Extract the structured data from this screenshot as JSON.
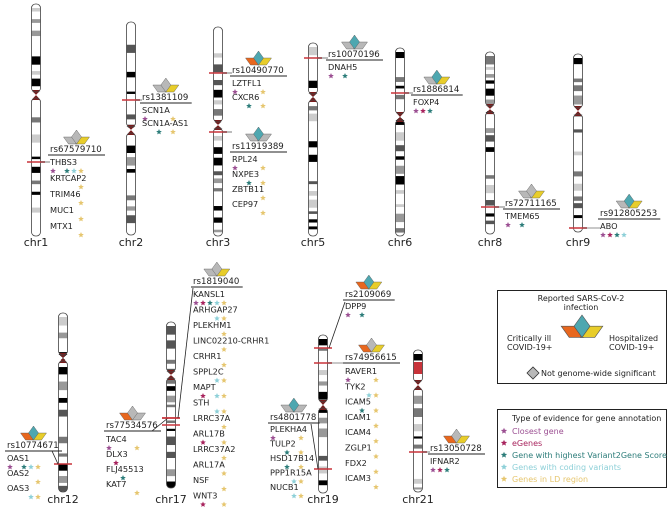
{
  "colors": {
    "critically_ill": "#e8671e",
    "reported_infection": "#4ea7b0",
    "hospitalized": "#e8cd2a",
    "not_significant": "#b8b8b8",
    "marker": "#c8333a",
    "evidence": {
      "C": "#9b4f92",
      "E": "#a8245e",
      "V": "#2d7d7a",
      "P": "#8ed0d8",
      "L": "#e6c66f"
    }
  },
  "chromosomes": [
    {
      "name": "chr1"
    },
    {
      "name": "chr2"
    },
    {
      "name": "chr3"
    },
    {
      "name": "chr5"
    },
    {
      "name": "chr6"
    },
    {
      "name": "chr8"
    },
    {
      "name": "chr9"
    },
    {
      "name": "chr12"
    },
    {
      "name": "chr17"
    },
    {
      "name": "chr19"
    },
    {
      "name": "chr21"
    }
  ],
  "loci": [
    {
      "chr": "chr1",
      "rsid": "rs67579710",
      "icon": [
        "grey",
        "grey",
        "yellow"
      ],
      "genes": [
        {
          "name": "THBS3",
          "ev": [
            "C",
            "V",
            "P",
            "L"
          ]
        },
        {
          "name": "KRTCAP2",
          "ev": [
            "L"
          ]
        },
        {
          "name": "TRIM46",
          "ev": [
            "L"
          ]
        },
        {
          "name": "MUC1",
          "ev": [
            "L"
          ]
        },
        {
          "name": "MTX1",
          "ev": [
            "L"
          ]
        }
      ]
    },
    {
      "chr": "chr2",
      "rsid": "rs1381109",
      "icon": [
        "grey",
        "grey",
        "yellow"
      ],
      "genes": [
        {
          "name": "SCN1A",
          "ev": [
            "C",
            "L"
          ]
        },
        {
          "name": "SCN1A-AS1",
          "ev": [
            "V",
            "L"
          ]
        }
      ]
    },
    {
      "chr": "chr3",
      "rsid": "rs10490770",
      "icon": [
        "orange",
        "teal",
        "yellow"
      ],
      "genes": [
        {
          "name": "LZTFL1",
          "ev": [
            "C",
            "L"
          ]
        },
        {
          "name": "CXCR6",
          "ev": [
            "V",
            "L"
          ]
        }
      ]
    },
    {
      "chr": "chr3",
      "rsid": "rs11919389",
      "icon": [
        "grey",
        "teal",
        "grey"
      ],
      "genes": [
        {
          "name": "RPL24",
          "ev": [
            "C",
            "L"
          ]
        },
        {
          "name": "NXPE3",
          "ev": [
            "V",
            "L"
          ]
        },
        {
          "name": "ZBTB11",
          "ev": [
            "L"
          ]
        },
        {
          "name": "CEP97",
          "ev": [
            "L"
          ]
        }
      ]
    },
    {
      "chr": "chr5",
      "rsid": "rs10070196",
      "icon": [
        "grey",
        "teal",
        "grey"
      ],
      "genes": [
        {
          "name": "DNAH5",
          "ev": [
            "C",
            "V"
          ]
        }
      ]
    },
    {
      "chr": "chr6",
      "rsid": "rs1886814",
      "icon": [
        "grey",
        "teal",
        "yellow"
      ],
      "genes": [
        {
          "name": "FOXP4",
          "ev": [
            "C",
            "E",
            "V"
          ]
        }
      ]
    },
    {
      "chr": "chr8",
      "rsid": "rs72711165",
      "icon": [
        "grey",
        "grey",
        "yellow"
      ],
      "genes": [
        {
          "name": "TMEM65",
          "ev": [
            "C",
            "V"
          ]
        }
      ]
    },
    {
      "chr": "chr9",
      "rsid": "rs912805253",
      "icon": [
        "grey",
        "teal",
        "yellow"
      ],
      "genes": [
        {
          "name": "ABO",
          "ev": [
            "C",
            "E",
            "V",
            "P"
          ]
        }
      ]
    },
    {
      "chr": "chr12",
      "rsid": "rs10774671",
      "icon": [
        "orange",
        "teal",
        "yellow"
      ],
      "genes": [
        {
          "name": "OAS1",
          "ev": [
            "C",
            "V",
            "P",
            "L"
          ]
        },
        {
          "name": "OAS2",
          "ev": [
            "L"
          ]
        },
        {
          "name": "OAS3",
          "ev": [
            "P",
            "L"
          ]
        }
      ]
    },
    {
      "chr": "chr17",
      "rsid": "rs77534576",
      "icon": [
        "orange",
        "grey",
        "grey"
      ],
      "genes": [
        {
          "name": "TAC4",
          "ev": [
            "C",
            "L"
          ]
        },
        {
          "name": "DLX3",
          "ev": [
            "E"
          ]
        },
        {
          "name": "FLJ45513",
          "ev": [
            "V"
          ]
        },
        {
          "name": "KAT7",
          "ev": [
            "L"
          ]
        }
      ]
    },
    {
      "chr": "chr17",
      "rsid": "rs1819040",
      "icon": [
        "grey",
        "grey",
        "yellow"
      ],
      "genes": [
        {
          "name": "KANSL1",
          "ev": [
            "C",
            "E",
            "V",
            "P",
            "L"
          ]
        },
        {
          "name": "ARHGAP27",
          "ev": [
            "P",
            "L"
          ]
        },
        {
          "name": "PLEKHM1",
          "ev": [
            "L"
          ]
        },
        {
          "name": "LINC02210-CRHR1",
          "ev": [
            "L"
          ]
        },
        {
          "name": "CRHR1",
          "ev": [
            "L"
          ]
        },
        {
          "name": "SPPL2C",
          "ev": [
            "P",
            "L"
          ]
        },
        {
          "name": "MAPT",
          "ev": [
            "E",
            "P",
            "L"
          ]
        },
        {
          "name": "STH",
          "ev": [
            "P",
            "L"
          ]
        },
        {
          "name": "LRRC37A",
          "ev": [
            "L"
          ]
        },
        {
          "name": "ARL17B",
          "ev": [
            "E",
            "L"
          ]
        },
        {
          "name": "LRRC37A2",
          "ev": [
            "L"
          ]
        },
        {
          "name": "ARL17A",
          "ev": [
            "L"
          ]
        },
        {
          "name": "NSF",
          "ev": [
            "L"
          ]
        },
        {
          "name": "WNT3",
          "ev": [
            "E",
            "L"
          ]
        }
      ]
    },
    {
      "chr": "chr19",
      "rsid": "rs2109069",
      "icon": [
        "orange",
        "teal",
        "yellow"
      ],
      "genes": [
        {
          "name": "DPP9",
          "ev": [
            "C",
            "V"
          ]
        }
      ]
    },
    {
      "chr": "chr19",
      "rsid": "rs74956615",
      "icon": [
        "orange",
        "grey",
        "yellow"
      ],
      "genes": [
        {
          "name": "RAVER1",
          "ev": [
            "C",
            "L"
          ]
        },
        {
          "name": "TYK2",
          "ev": [
            "P",
            "L"
          ]
        },
        {
          "name": "ICAM5",
          "ev": [
            "V",
            "L"
          ]
        },
        {
          "name": "ICAM1",
          "ev": [
            "L"
          ]
        },
        {
          "name": "ICAM4",
          "ev": [
            "L"
          ]
        },
        {
          "name": "ZGLP1",
          "ev": [
            "L"
          ]
        },
        {
          "name": "FDX2",
          "ev": [
            "L"
          ]
        },
        {
          "name": "ICAM3",
          "ev": [
            "L"
          ]
        }
      ]
    },
    {
      "chr": "chr19",
      "rsid": "rs4801778",
      "icon": [
        "grey",
        "teal",
        "grey"
      ],
      "genes": [
        {
          "name": "PLEKHA4",
          "ev": [
            "C",
            "L"
          ]
        },
        {
          "name": "TULP2",
          "ev": [
            "V",
            "L"
          ]
        },
        {
          "name": "HSD17B14",
          "ev": [
            "V",
            "L"
          ]
        },
        {
          "name": "PPP1R15A",
          "ev": [
            "P",
            "L"
          ]
        },
        {
          "name": "NUCB1",
          "ev": [
            "P",
            "L"
          ]
        }
      ]
    },
    {
      "chr": "chr21",
      "rsid": "rs13050728",
      "icon": [
        "orange",
        "grey",
        "yellow"
      ],
      "genes": [
        {
          "name": "IFNAR2",
          "ev": [
            "C",
            "E",
            "V"
          ]
        }
      ]
    }
  ],
  "legend_phenotype": {
    "top": "Reported SARS-CoV-2",
    "top2": "infection",
    "left": "Critically ill",
    "left2": "COVID-19+",
    "right": "Hospitalized",
    "right2": "COVID-19+",
    "ns": "Not genome-wide significant"
  },
  "legend_evidence": {
    "title": "Type of evidence for gene annotation",
    "items": [
      {
        "code": "C",
        "label": "Closest gene"
      },
      {
        "code": "E",
        "label": "eGenes"
      },
      {
        "code": "V",
        "label": "Gene with highest Variant2Gene Score"
      },
      {
        "code": "P",
        "label": "Genes with coding variants"
      },
      {
        "code": "L",
        "label": "Genes in LD region"
      }
    ]
  }
}
